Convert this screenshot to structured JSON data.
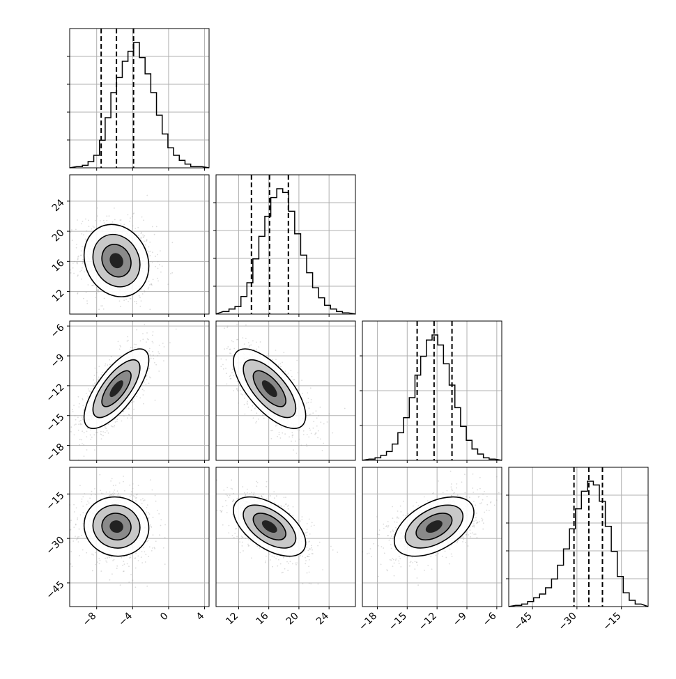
{
  "chart_data": {
    "type": "corner",
    "params": [
      {
        "center": -5.8,
        "sigma": 1.8,
        "range": [
          -11,
          4.5
        ],
        "ticks": [
          -8,
          -4,
          0,
          4
        ],
        "tick_labels": [
          "−8",
          "−4",
          "0",
          "4"
        ],
        "quantiles": [
          -7.5,
          -5.8,
          -3.9
        ],
        "hist_ticks": 5
      },
      {
        "center": 16.1,
        "sigma": 2.4,
        "range": [
          9,
          27.5
        ],
        "ticks": [
          12,
          16,
          20,
          24
        ],
        "tick_labels": [
          "12",
          "16",
          "20",
          "24"
        ],
        "quantiles": [
          13.7,
          16.1,
          18.6
        ],
        "hist_ticks": 5
      },
      {
        "center": -12.3,
        "sigma": 2.0,
        "range": [
          -19.5,
          -5.5
        ],
        "ticks": [
          -18,
          -15,
          -12,
          -9,
          -6
        ],
        "tick_labels": [
          "−18",
          "−15",
          "−12",
          "−9",
          "−6"
        ],
        "quantiles": [
          -14.0,
          -12.3,
          -10.5
        ],
        "hist_ticks": 4
      },
      {
        "center": -26.0,
        "sigma": 5.0,
        "range": [
          -53,
          -6
        ],
        "ticks": [
          -45,
          -30,
          -15
        ],
        "tick_labels": [
          "−45",
          "−30",
          "−15"
        ],
        "quantiles": [
          -31.0,
          -26.0,
          -21.4
        ],
        "hist_ticks": 5
      }
    ],
    "histograms": [
      {
        "counts": [
          1,
          2,
          5,
          10,
          22,
          40,
          60,
          72,
          85,
          93,
          100,
          88,
          75,
          60,
          42,
          27,
          16,
          10,
          6,
          3,
          1,
          1
        ]
      },
      {
        "counts": [
          2,
          4,
          6,
          14,
          25,
          44,
          62,
          78,
          93,
          100,
          97,
          82,
          64,
          47,
          33,
          21,
          13,
          7,
          4,
          2,
          1
        ]
      },
      {
        "counts": [
          1,
          2,
          4,
          7,
          13,
          22,
          34,
          50,
          68,
          83,
          96,
          100,
          92,
          77,
          60,
          42,
          27,
          16,
          9,
          5,
          2,
          1
        ]
      },
      {
        "counts": [
          1,
          2,
          4,
          7,
          10,
          15,
          22,
          33,
          46,
          62,
          78,
          92,
          100,
          97,
          84,
          64,
          44,
          24,
          11,
          5,
          2
        ]
      }
    ],
    "correlations": [
      [
        0,
        0,
        0,
        0
      ],
      [
        -0.15,
        0,
        0,
        0
      ],
      [
        0.72,
        -0.68,
        0,
        0
      ],
      [
        -0.05,
        -0.55,
        0.48,
        0
      ]
    ],
    "grid": true
  }
}
